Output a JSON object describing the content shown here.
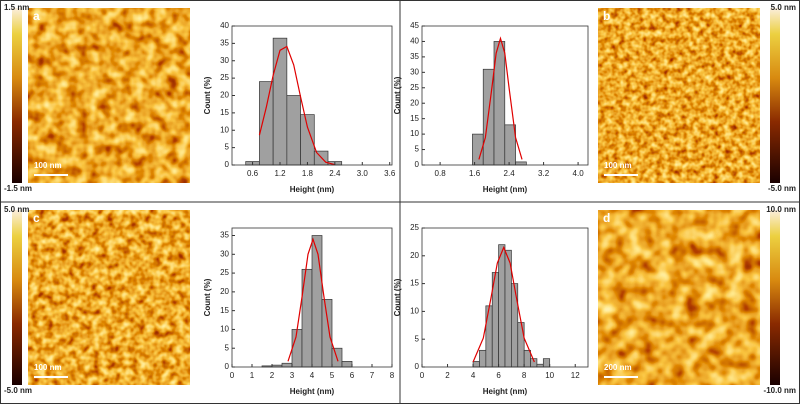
{
  "chart_data": [
    {
      "type": "histogram",
      "panel_label": "a",
      "colorbar_max": "1.5 nm",
      "colorbar_min": "-1.5 nm",
      "scale_bar": "100 nm",
      "xlabel": "Height (nm)",
      "ylabel": "Count (%)",
      "color": "#a0a0a0",
      "bins": [
        0.45,
        0.75,
        1.05,
        1.35,
        1.65,
        1.95,
        2.25,
        2.55
      ],
      "counts": [
        1,
        24,
        36.5,
        20,
        14.5,
        4,
        1
      ],
      "fit": {
        "color": "#e00000",
        "x": [
          0.75,
          0.9,
          1.05,
          1.2,
          1.35,
          1.5,
          1.65,
          1.8,
          2.0,
          2.2,
          2.4
        ],
        "y": [
          8.6,
          16.6,
          25.8,
          33,
          34.1,
          28.8,
          19.6,
          10.9,
          3.6,
          0.8,
          0.1
        ]
      },
      "xlim": [
        0.15,
        3.65
      ],
      "xticks": [
        0.6,
        1.2,
        1.8,
        2.4,
        {
          "value": 3,
          "label": "3.0"
        },
        3.6
      ],
      "ylim": [
        0,
        40
      ],
      "yticks": [
        0,
        5,
        10,
        15,
        20,
        25,
        30,
        35,
        40
      ]
    },
    {
      "type": "histogram",
      "panel_label": "b",
      "colorbar_max": "5.0 nm",
      "colorbar_min": "-5.0 nm",
      "scale_bar": "100 nm",
      "xlabel": "Height (nm)",
      "ylabel": "Count (%)",
      "color": "#a0a0a0",
      "bins": [
        1.55,
        1.8,
        2.05,
        2.3,
        2.55,
        2.8
      ],
      "counts": [
        10,
        31,
        40,
        13,
        1
      ],
      "fit": {
        "color": "#e00000",
        "x": [
          1.7,
          1.85,
          2.0,
          2.1,
          2.2,
          2.3,
          2.4,
          2.55,
          2.7
        ],
        "y": [
          1.8,
          8.9,
          24.9,
          36.2,
          41,
          36.2,
          24.9,
          8.9,
          1.8
        ]
      },
      "xlim": [
        0.38,
        4.23
      ],
      "xticks": [
        0.8,
        1.6,
        2.4,
        3.2,
        {
          "value": 4,
          "label": "4.0"
        }
      ],
      "ylim": [
        0,
        45
      ],
      "yticks": [
        0,
        5,
        10,
        15,
        20,
        25,
        30,
        35,
        40,
        45
      ]
    },
    {
      "type": "histogram",
      "panel_label": "c",
      "colorbar_max": "5.0 nm",
      "colorbar_min": "-5.0 nm",
      "scale_bar": "100 nm",
      "xlabel": "Height (nm)",
      "ylabel": "Count (%)",
      "color": "#a0a0a0",
      "bins": [
        1.5,
        2,
        2.5,
        3,
        3.5,
        4,
        4.5,
        5,
        5.5,
        6
      ],
      "counts": [
        0.3,
        0.5,
        1,
        10,
        26,
        35,
        18,
        5,
        1.5
      ],
      "fit": {
        "color": "#e00000",
        "x": [
          2.8,
          3.2,
          3.5,
          3.8,
          4.05,
          4.3,
          4.6,
          4.9,
          5.3
        ],
        "y": [
          1.5,
          8,
          18.6,
          30,
          34,
          30,
          18.6,
          8,
          1.5
        ]
      },
      "xlim": [
        0,
        8
      ],
      "xticks": [
        0,
        1,
        2,
        3,
        4,
        5,
        6,
        7,
        8
      ],
      "ylim": [
        0,
        37
      ],
      "yticks": [
        0,
        5,
        10,
        15,
        20,
        25,
        30,
        35
      ]
    },
    {
      "type": "histogram",
      "panel_label": "d",
      "colorbar_max": "10.0 nm",
      "colorbar_min": "-10.0 nm",
      "scale_bar": "200 nm",
      "xlabel": "Height (nm)",
      "ylabel": "Count (%)",
      "color": "#a0a0a0",
      "bins": [
        4,
        4.5,
        5,
        5.5,
        6,
        6.5,
        7,
        7.5,
        8,
        8.5,
        9,
        9.5,
        10
      ],
      "counts": [
        1,
        3,
        11,
        17,
        22,
        21,
        15,
        8,
        3,
        1.5,
        0.5,
        1.5
      ],
      "fit": {
        "color": "#e00000",
        "x": [
          4.0,
          4.8,
          5.4,
          5.9,
          6.4,
          6.9,
          7.4,
          8.0,
          8.8
        ],
        "y": [
          0.9,
          5.2,
          12.4,
          18.7,
          21.5,
          18.7,
          12.4,
          5.2,
          0.9
        ]
      },
      "xlim": [
        0,
        13
      ],
      "xticks": [
        0,
        2,
        4,
        6,
        8,
        10,
        12
      ],
      "ylim": [
        0,
        25
      ],
      "yticks": [
        0,
        5,
        10,
        15,
        20,
        25
      ]
    }
  ]
}
